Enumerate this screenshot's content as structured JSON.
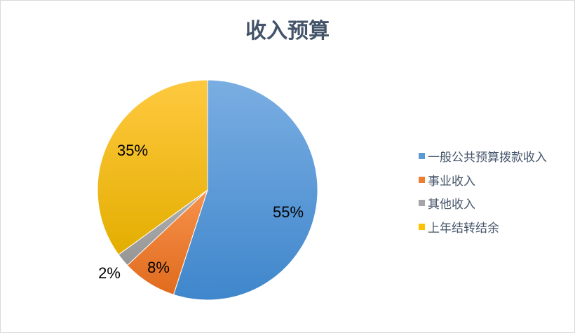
{
  "chart_data": {
    "type": "pie",
    "title": "收入预算",
    "categories": [
      "一般公共预算拨款收入",
      "事业收入",
      "其他收入",
      "上年结转结余"
    ],
    "values": [
      55,
      8,
      2,
      35
    ],
    "labels": [
      "55%",
      "8%",
      "2%",
      "35%"
    ],
    "colors": [
      "#5b9bd5",
      "#ed7d31",
      "#a5a5a5",
      "#ffc000"
    ],
    "legend_position": "right"
  }
}
